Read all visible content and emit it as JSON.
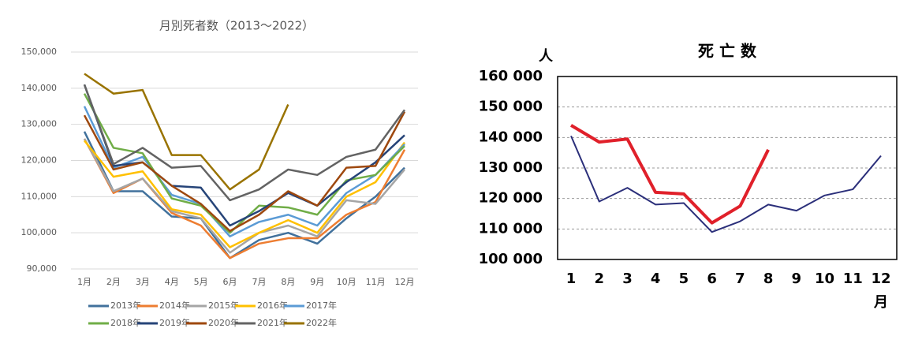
{
  "chart_data": [
    {
      "type": "line",
      "title": "月別死者数（2013～2022）",
      "categories": [
        "1月",
        "2月",
        "3月",
        "4月",
        "5月",
        "6月",
        "7月",
        "8月",
        "9月",
        "10月",
        "11月",
        "12月"
      ],
      "ylim": [
        90000,
        150000
      ],
      "yticks": [
        {
          "value": 90000,
          "label": "90,000"
        },
        {
          "value": 100000,
          "label": "100,000"
        },
        {
          "value": 110000,
          "label": "110,000"
        },
        {
          "value": 120000,
          "label": "120,000"
        },
        {
          "value": 130000,
          "label": "130,000"
        },
        {
          "value": 140000,
          "label": "140,000"
        },
        {
          "value": 150000,
          "label": "150,000"
        }
      ],
      "grid": true,
      "legend": "bottom",
      "series": [
        {
          "name": "2013年",
          "color": "#41719c",
          "values": [
            128000,
            111500,
            111500,
            104500,
            104000,
            93000,
            98000,
            100000,
            97000,
            104000,
            110000,
            118000
          ]
        },
        {
          "name": "2014年",
          "color": "#ed7d31",
          "values": [
            126000,
            111000,
            115000,
            105500,
            102000,
            93000,
            97000,
            98500,
            98500,
            105000,
            108500,
            123000
          ]
        },
        {
          "name": "2015年",
          "color": "#a5a5a5",
          "values": [
            126000,
            111500,
            115000,
            106000,
            104000,
            94500,
            100000,
            102000,
            99000,
            109000,
            108000,
            117500
          ]
        },
        {
          "name": "2016年",
          "color": "#ffc000",
          "values": [
            125500,
            115500,
            117000,
            106500,
            105000,
            96000,
            100000,
            103500,
            100000,
            110000,
            114000,
            125000
          ]
        },
        {
          "name": "2017年",
          "color": "#5b9bd5",
          "values": [
            135000,
            118000,
            121000,
            110500,
            108000,
            99000,
            103000,
            105000,
            102000,
            111000,
            116000,
            124500
          ]
        },
        {
          "name": "2018年",
          "color": "#70ad47",
          "values": [
            138500,
            123500,
            122000,
            109500,
            107500,
            100000,
            107500,
            107000,
            105000,
            114500,
            116000,
            124000
          ]
        },
        {
          "name": "2019年",
          "color": "#264478",
          "values": [
            141000,
            118500,
            119500,
            113000,
            112500,
            102000,
            106000,
            111000,
            107500,
            114000,
            119500,
            127000
          ]
        },
        {
          "name": "2020年",
          "color": "#9e480e",
          "values": [
            132500,
            117500,
            119500,
            113000,
            108000,
            100500,
            105000,
            111500,
            107500,
            118000,
            118500,
            133500
          ]
        },
        {
          "name": "2021年",
          "color": "#636363",
          "values": [
            141000,
            119000,
            123500,
            118000,
            118500,
            109000,
            112000,
            117500,
            116000,
            121000,
            123000,
            134000
          ]
        },
        {
          "name": "2022年",
          "color": "#997300",
          "values": [
            144000,
            138500,
            139500,
            121500,
            121500,
            112000,
            117500,
            135500,
            null,
            null,
            null,
            null
          ]
        }
      ]
    },
    {
      "type": "line",
      "title": "死 亡 数",
      "y_label": "人",
      "x_label": "月",
      "categories": [
        "1",
        "2",
        "3",
        "4",
        "5",
        "6",
        "7",
        "8",
        "9",
        "10",
        "11",
        "12"
      ],
      "ylim": [
        100000,
        160000
      ],
      "yticks": [
        {
          "value": 100000,
          "label": "100 000"
        },
        {
          "value": 110000,
          "label": "110 000"
        },
        {
          "value": 120000,
          "label": "120 000"
        },
        {
          "value": 130000,
          "label": "130 000"
        },
        {
          "value": 140000,
          "label": "140 000"
        },
        {
          "value": 150000,
          "label": "150 000"
        },
        {
          "value": 160000,
          "label": "160 000"
        }
      ],
      "grid": true,
      "series": [
        {
          "color": "#2b2f7a",
          "values": [
            140500,
            119000,
            123500,
            118000,
            118500,
            109000,
            112500,
            118000,
            116000,
            121000,
            123000,
            134000
          ]
        },
        {
          "color": "#e0202a",
          "values": [
            144000,
            138500,
            139500,
            122000,
            121500,
            112000,
            117500,
            136000,
            null,
            null,
            null,
            null
          ]
        }
      ]
    }
  ]
}
